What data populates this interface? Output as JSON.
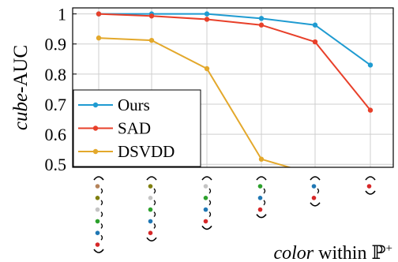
{
  "chart_data": {
    "type": "line",
    "ylabel_italic": "cube",
    "ylabel_rest": "-AUC",
    "xlabel_italic": "color",
    "xlabel_rest": " within ℙ",
    "xlabel_sup": "+",
    "ylim": [
      0.49,
      1.02
    ],
    "yticks": [
      0.5,
      0.6,
      0.7,
      0.8,
      0.9,
      1.0
    ],
    "ytick_labels": [
      "0.5",
      "0.6",
      "0.7",
      "0.8",
      "0.9",
      "1"
    ],
    "grid": true,
    "legend_position": "bottom-left",
    "categories": [
      {
        "dots": [
          "brown",
          "olive",
          "gray",
          "green",
          "blue",
          "red"
        ]
      },
      {
        "dots": [
          "olive",
          "gray",
          "green",
          "blue",
          "red"
        ]
      },
      {
        "dots": [
          "gray",
          "green",
          "blue",
          "red"
        ]
      },
      {
        "dots": [
          "green",
          "blue",
          "red"
        ]
      },
      {
        "dots": [
          "blue",
          "red"
        ]
      },
      {
        "dots": [
          "red"
        ]
      }
    ],
    "series": [
      {
        "name": "Ours",
        "color": "#1f9bd1",
        "values": [
          1.0,
          1.0,
          1.0,
          0.985,
          0.963,
          0.83
        ]
      },
      {
        "name": "SAD",
        "color": "#e8402a",
        "values": [
          1.0,
          0.993,
          0.982,
          0.963,
          0.907,
          0.68
        ]
      },
      {
        "name": "DSVDD",
        "color": "#e3a82b",
        "values": [
          0.92,
          0.912,
          0.818,
          0.517,
          0.465,
          null
        ]
      }
    ],
    "dot_colors": {
      "brown": "#b5835a",
      "olive": "#7f7f10",
      "gray": "#c4c4c4",
      "green": "#2ca02c",
      "blue": "#1f77b4",
      "red": "#d62728"
    }
  }
}
